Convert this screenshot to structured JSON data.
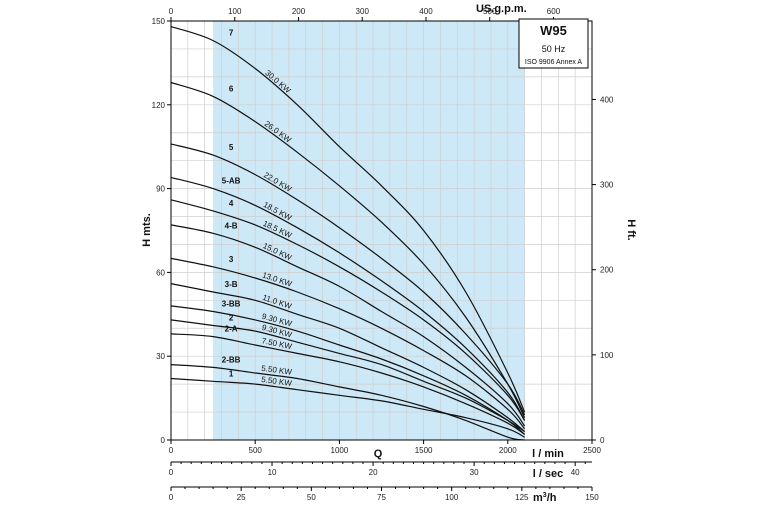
{
  "chart_data": {
    "type": "line",
    "title": "W95",
    "subtitle": "50 Hz",
    "standard": "ISO 9906 Annex A",
    "xlabel": "Q",
    "x_unit_lmin": "l / min",
    "x_unit_lsec": "l / sec",
    "x_unit_m3h": "m³/h",
    "x_unit_m3h_base": "m",
    "x_unit_m3h_exp": "3",
    "x_unit_m3h_tail": "/h",
    "x_unit_usgpm": "US.g.p.m.",
    "ylabel_left": "H mts.",
    "ylabel_right": "H ft.",
    "xlim_lmin": [
      0,
      2500
    ],
    "ylim_m": [
      0,
      150
    ],
    "x_ticks_lmin": [
      "0",
      "500",
      "1000",
      "1500",
      "2000",
      "2500"
    ],
    "x_ticks_lsec": [
      "0",
      "10",
      "20",
      "30",
      "40"
    ],
    "x_ticks_m3h": [
      "0",
      "25",
      "50",
      "75",
      "100",
      "125",
      "150"
    ],
    "x_ticks_usgpm": [
      "0",
      "100",
      "200",
      "300",
      "400",
      "500",
      "600"
    ],
    "y_ticks_m": [
      "0",
      "30",
      "60",
      "90",
      "120",
      "150"
    ],
    "y_ticks_ft": [
      "0",
      "100",
      "200",
      "300",
      "400"
    ],
    "grid": true,
    "operating_range_lmin": [
      250,
      2100
    ],
    "colors": {
      "range_fill": "#cde8f6",
      "curve": "#111111",
      "grid": "#cfcfcf",
      "frame": "#000000"
    },
    "series": [
      {
        "name": "7",
        "power": "30.0 KW",
        "x": [
          0,
          250,
          500,
          750,
          1000,
          1250,
          1500,
          1750,
          2000,
          2100
        ],
        "y": [
          148,
          143,
          133,
          120,
          105,
          91,
          75,
          53,
          24,
          10
        ]
      },
      {
        "name": "6",
        "power": "26.0 KW",
        "x": [
          0,
          250,
          500,
          750,
          1000,
          1250,
          1500,
          1750,
          2000,
          2100
        ],
        "y": [
          128,
          123,
          114,
          103,
          91,
          78,
          63,
          44,
          20,
          8
        ]
      },
      {
        "name": "5",
        "power": "22.0 KW",
        "x": [
          0,
          250,
          500,
          750,
          1000,
          1250,
          1500,
          1750,
          2000,
          2100
        ],
        "y": [
          106,
          102,
          95,
          86,
          76,
          65,
          53,
          38,
          20,
          9
        ]
      },
      {
        "name": "5-AB",
        "power": "18.5 KW",
        "x": [
          0,
          250,
          500,
          750,
          1000,
          1250,
          1500,
          1750,
          2000,
          2100
        ],
        "y": [
          94,
          90,
          84,
          76,
          67,
          57,
          46,
          33,
          17,
          7
        ]
      },
      {
        "name": "4",
        "power": "18.5 KW",
        "x": [
          0,
          250,
          500,
          750,
          1000,
          1250,
          1500,
          1750,
          2000,
          2100
        ],
        "y": [
          86,
          82,
          77,
          70,
          62,
          53,
          43,
          31,
          16,
          7
        ]
      },
      {
        "name": "4-B",
        "power": "15.0 KW",
        "x": [
          0,
          250,
          500,
          750,
          1000,
          1250,
          1500,
          1750,
          2000,
          2100
        ],
        "y": [
          77,
          74,
          69,
          62,
          55,
          46,
          37,
          26,
          13,
          5
        ]
      },
      {
        "name": "3",
        "power": "13.0 KW",
        "x": [
          0,
          250,
          500,
          750,
          1000,
          1250,
          1500,
          1750,
          2000,
          2100
        ],
        "y": [
          65,
          62,
          58,
          53,
          47,
          40,
          32,
          23,
          11,
          4
        ]
      },
      {
        "name": "3-B",
        "power": "11.0 KW",
        "x": [
          0,
          250,
          500,
          750,
          1000,
          1250,
          1500,
          1750,
          2000,
          2100
        ],
        "y": [
          56,
          53,
          50,
          45,
          40,
          33,
          26,
          18,
          8,
          3
        ]
      },
      {
        "name": "3-BB",
        "power": "9.30 KW",
        "x": [
          0,
          250,
          500,
          750,
          1000,
          1250,
          1500,
          1750,
          2000,
          2100
        ],
        "y": [
          48,
          46,
          43,
          39,
          34,
          29,
          23,
          16,
          7,
          2
        ]
      },
      {
        "name": "2",
        "power": "9.30 KW",
        "x": [
          0,
          250,
          500,
          750,
          1000,
          1250,
          1500,
          1750,
          2000,
          2100
        ],
        "y": [
          43,
          41,
          39,
          35,
          31,
          27,
          21,
          15,
          7,
          3
        ]
      },
      {
        "name": "2-A",
        "power": "7.50 KW",
        "x": [
          0,
          250,
          500,
          750,
          1000,
          1250,
          1500,
          1750,
          2000,
          2100
        ],
        "y": [
          38,
          37,
          34,
          31,
          28,
          24,
          19,
          13,
          6,
          2
        ]
      },
      {
        "name": "2-BB",
        "power": "5.50 KW",
        "x": [
          0,
          250,
          500,
          750,
          1000,
          1250,
          1500,
          1750,
          2000,
          2100
        ],
        "y": [
          27,
          26,
          24,
          22,
          19,
          16,
          12,
          7,
          1,
          0
        ]
      },
      {
        "name": "1",
        "power": "5.50 KW",
        "x": [
          0,
          250,
          500,
          750,
          1000,
          1250,
          1500,
          1750,
          2000,
          2100
        ],
        "y": [
          22,
          21,
          20,
          18,
          16,
          14,
          11,
          8,
          4,
          1
        ]
      }
    ]
  }
}
